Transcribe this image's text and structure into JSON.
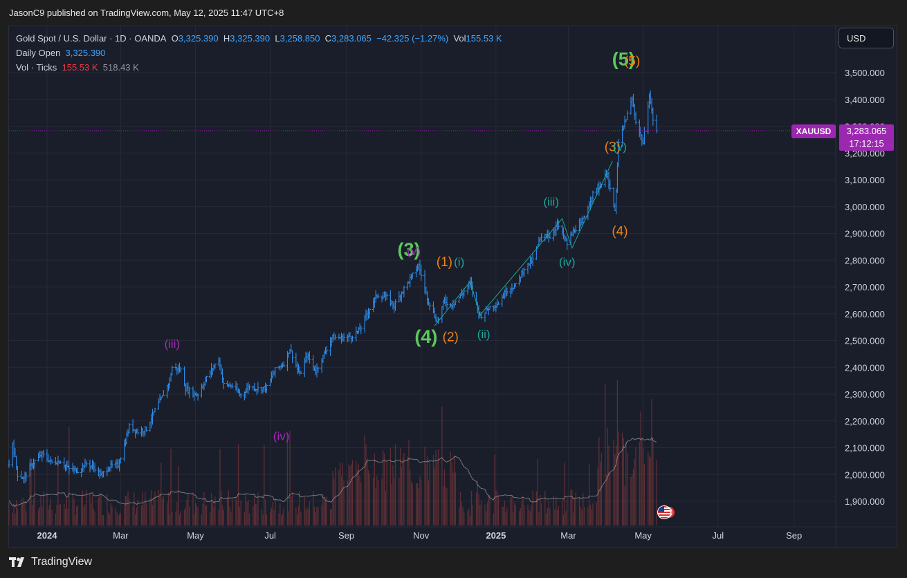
{
  "header": {
    "published_line": "JasonC9 published on TradingView.com, May 12, 2025 11:47 UTC+8"
  },
  "legend": {
    "instrument": "Gold Spot / U.S. Dollar · 1D · OANDA",
    "o_label": "O",
    "o_val": "3,325.390",
    "h_label": "H",
    "h_val": "3,325.390",
    "l_label": "L",
    "l_val": "3,258.850",
    "c_label": "C",
    "c_val": "3,283.065",
    "change": "−42.325 (−1.27%)",
    "vol_label": "Vol",
    "vol_val": "155.53 K",
    "daily_open_label": "Daily Open",
    "daily_open_val": "3,325.390",
    "vol_ticks_label": "Vol · Ticks",
    "vol_ticks_val1": "155.53 K",
    "vol_ticks_val2": "518.43 K"
  },
  "currency_button": "USD",
  "price_tag": {
    "symbol": "XAUUSD",
    "price": "3,283.065",
    "countdown": "17:12:15"
  },
  "footer": {
    "brand": "TradingView"
  },
  "colors": {
    "background": "#1a1e2b",
    "candle": "#2f8ce8",
    "volume": "#8b3a3a",
    "volume_ma": "#c0c0c0",
    "primary_wave": "#5cc95c",
    "intermediate_wave": "#f0820f",
    "minor_wave": "#1aa79a",
    "minute_wave": "#a32ab6",
    "last_price": "#9c27b0"
  },
  "chart_data": {
    "type": "candlestick",
    "title": "Gold Spot / U.S. Dollar · 1D · OANDA",
    "ylim": [
      1850,
      3560
    ],
    "y_ticks": [
      "1,900.000",
      "2,000.000",
      "2,100.000",
      "2,200.000",
      "2,300.000",
      "2,400.000",
      "2,500.000",
      "2,600.000",
      "2,700.000",
      "2,800.000",
      "2,900.000",
      "3,000.000",
      "3,100.000",
      "3,200.000",
      "3,300.000",
      "3,400.000",
      "3,500.000"
    ],
    "y_tick_values": [
      1900,
      2000,
      2100,
      2200,
      2300,
      2400,
      2500,
      2600,
      2700,
      2800,
      2900,
      3000,
      3100,
      3200,
      3300,
      3400,
      3500
    ],
    "x_range": [
      "2023-12-01",
      "2025-10-05"
    ],
    "x_ticks": [
      {
        "label": "2024",
        "date": "2024-01-01",
        "bold": true
      },
      {
        "label": "Mar",
        "date": "2024-03-01"
      },
      {
        "label": "May",
        "date": "2024-05-01"
      },
      {
        "label": "Jul",
        "date": "2024-07-01"
      },
      {
        "label": "Sep",
        "date": "2024-09-01"
      },
      {
        "label": "Nov",
        "date": "2024-11-01"
      },
      {
        "label": "2025",
        "date": "2025-01-01",
        "bold": true
      },
      {
        "label": "Mar",
        "date": "2025-03-01"
      },
      {
        "label": "May",
        "date": "2025-05-01"
      },
      {
        "label": "Jul",
        "date": "2025-07-01"
      },
      {
        "label": "Sep",
        "date": "2025-09-01"
      }
    ],
    "price_path": [
      [
        "2023-12-01",
        2035
      ],
      [
        "2023-12-04",
        2120
      ],
      [
        "2023-12-08",
        2000
      ],
      [
        "2023-12-13",
        1985
      ],
      [
        "2023-12-20",
        2040
      ],
      [
        "2023-12-28",
        2075
      ],
      [
        "2024-01-05",
        2045
      ],
      [
        "2024-01-12",
        2050
      ],
      [
        "2024-01-19",
        2020
      ],
      [
        "2024-01-26",
        2015
      ],
      [
        "2024-02-02",
        2040
      ],
      [
        "2024-02-09",
        2025
      ],
      [
        "2024-02-14",
        1995
      ],
      [
        "2024-02-21",
        2030
      ],
      [
        "2024-02-28",
        2035
      ],
      [
        "2024-03-05",
        2125
      ],
      [
        "2024-03-08",
        2180
      ],
      [
        "2024-03-15",
        2160
      ],
      [
        "2024-03-22",
        2170
      ],
      [
        "2024-03-28",
        2230
      ],
      [
        "2024-04-04",
        2290
      ],
      [
        "2024-04-10",
        2350
      ],
      [
        "2024-04-12",
        2400
      ],
      [
        "2024-04-19",
        2390
      ],
      [
        "2024-04-23",
        2320
      ],
      [
        "2024-04-30",
        2300
      ],
      [
        "2024-05-03",
        2300
      ],
      [
        "2024-05-10",
        2360
      ],
      [
        "2024-05-17",
        2410
      ],
      [
        "2024-05-20",
        2430
      ],
      [
        "2024-05-24",
        2335
      ],
      [
        "2024-05-31",
        2330
      ],
      [
        "2024-06-07",
        2295
      ],
      [
        "2024-06-14",
        2330
      ],
      [
        "2024-06-21",
        2320
      ],
      [
        "2024-06-28",
        2325
      ],
      [
        "2024-07-05",
        2390
      ],
      [
        "2024-07-12",
        2415
      ],
      [
        "2024-07-17",
        2470
      ],
      [
        "2024-07-25",
        2370
      ],
      [
        "2024-07-31",
        2445
      ],
      [
        "2024-08-07",
        2385
      ],
      [
        "2024-08-14",
        2450
      ],
      [
        "2024-08-20",
        2510
      ],
      [
        "2024-08-28",
        2510
      ],
      [
        "2024-09-05",
        2515
      ],
      [
        "2024-09-12",
        2540
      ],
      [
        "2024-09-20",
        2620
      ],
      [
        "2024-09-26",
        2670
      ],
      [
        "2024-10-04",
        2660
      ],
      [
        "2024-10-10",
        2630
      ],
      [
        "2024-10-16",
        2680
      ],
      [
        "2024-10-23",
        2730
      ],
      [
        "2024-10-30",
        2780
      ],
      [
        "2024-11-06",
        2660
      ],
      [
        "2024-11-14",
        2570
      ],
      [
        "2024-11-20",
        2650
      ],
      [
        "2024-11-25",
        2630
      ],
      [
        "2024-12-02",
        2660
      ],
      [
        "2024-12-11",
        2715
      ],
      [
        "2024-12-19",
        2590
      ],
      [
        "2024-12-27",
        2625
      ],
      [
        "2025-01-03",
        2640
      ],
      [
        "2025-01-10",
        2690
      ],
      [
        "2025-01-17",
        2705
      ],
      [
        "2025-01-24",
        2770
      ],
      [
        "2025-01-31",
        2800
      ],
      [
        "2025-02-05",
        2870
      ],
      [
        "2025-02-11",
        2900
      ],
      [
        "2025-02-14",
        2885
      ],
      [
        "2025-02-20",
        2935
      ],
      [
        "2025-02-28",
        2860
      ],
      [
        "2025-03-06",
        2915
      ],
      [
        "2025-03-12",
        2935
      ],
      [
        "2025-03-20",
        3040
      ],
      [
        "2025-03-28",
        3085
      ],
      [
        "2025-04-02",
        3130
      ],
      [
        "2025-04-03",
        3080
      ],
      [
        "2025-04-08",
        2980
      ],
      [
        "2025-04-11",
        3235
      ],
      [
        "2025-04-17",
        3330
      ],
      [
        "2025-04-22",
        3400
      ],
      [
        "2025-04-25",
        3320
      ],
      [
        "2025-05-01",
        3235
      ],
      [
        "2025-05-06",
        3420
      ],
      [
        "2025-05-09",
        3325
      ],
      [
        "2025-05-12",
        3283
      ]
    ],
    "volume_note": "Vol · Ticks 155.53 K (MA 518.43 K)",
    "waves": [
      {
        "label": "(3)",
        "degree": "primary",
        "date": "2024-10-22",
        "price": 2835
      },
      {
        "label": "(4)",
        "degree": "primary",
        "date": "2024-11-05",
        "price": 2510
      },
      {
        "label": "(5)",
        "degree": "primary",
        "date": "2025-04-15",
        "price": 3545
      },
      {
        "label": "(iii)",
        "degree": "minute",
        "date": "2024-04-12",
        "price": 2485
      },
      {
        "label": "(iv)",
        "degree": "minute",
        "date": "2024-07-10",
        "price": 2140
      },
      {
        "label": "(v)",
        "degree": "minute",
        "date": "2024-10-26",
        "price": 2830
      },
      {
        "label": "(1)",
        "degree": "intermediate",
        "date": "2024-11-20",
        "price": 2790
      },
      {
        "label": "(2)",
        "degree": "intermediate",
        "date": "2024-11-25",
        "price": 2510
      },
      {
        "label": "(3)",
        "degree": "intermediate",
        "date": "2025-04-06",
        "price": 3220
      },
      {
        "label": "(4)",
        "degree": "intermediate",
        "date": "2025-04-12",
        "price": 2905
      },
      {
        "label": "(5)",
        "degree": "intermediate",
        "date": "2025-04-22",
        "price": 3540
      },
      {
        "label": "(i)",
        "degree": "minor",
        "date": "2024-12-02",
        "price": 2790
      },
      {
        "label": "(ii)",
        "degree": "minor",
        "date": "2024-12-22",
        "price": 2520
      },
      {
        "label": "(iii)",
        "degree": "minor",
        "date": "2025-02-15",
        "price": 3015
      },
      {
        "label": "(iv)",
        "degree": "minor",
        "date": "2025-02-28",
        "price": 2790
      },
      {
        "label": "(v)",
        "degree": "minor",
        "date": "2025-04-12",
        "price": 3220
      }
    ],
    "wave_path": [
      [
        "2024-11-12",
        2555
      ],
      [
        "2024-12-11",
        2720
      ],
      [
        "2024-12-19",
        2595
      ],
      [
        "2025-02-24",
        2955
      ],
      [
        "2025-03-04",
        2845
      ],
      [
        "2025-04-06",
        3170
      ]
    ],
    "last_price": 3283.065
  }
}
